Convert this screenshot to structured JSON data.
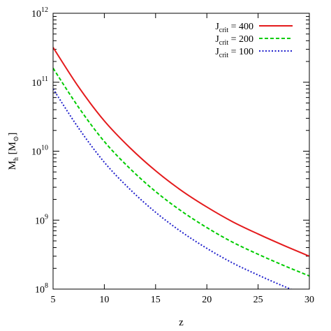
{
  "chart_data": {
    "type": "line",
    "title": "",
    "xlabel": "z",
    "ylabel_main": "M",
    "ylabel_sub": "h",
    "ylabel_unit": "[M",
    "ylabel_unit_close": "]",
    "ylabel_unit_symbol": "⊙",
    "xlim": [
      5,
      30
    ],
    "ylim": [
      100000000,
      1000000000000
    ],
    "y_scale": "log",
    "x_ticks": [
      5,
      10,
      15,
      20,
      25,
      30
    ],
    "x_tick_labels": [
      "5",
      "10",
      "15",
      "20",
      "25",
      "30"
    ],
    "y_ticks": [
      {
        "value": 100000000,
        "base": "10",
        "exp": "8"
      },
      {
        "value": 1000000000,
        "base": "10",
        "exp": "9"
      },
      {
        "value": 10000000000,
        "base": "10",
        "exp": "10"
      },
      {
        "value": 100000000000,
        "base": "10",
        "exp": "11"
      },
      {
        "value": 1000000000000,
        "base": "10",
        "exp": "12"
      }
    ],
    "grid": false,
    "legend_position": "top-right",
    "x": [
      5,
      7.5,
      10,
      12.5,
      15,
      17.5,
      20,
      22.5,
      25,
      27.5,
      30
    ],
    "series": [
      {
        "legend_main": "J",
        "legend_sub": "crit",
        "legend_value": " = 400",
        "color": "#e41a1c",
        "dash": "solid",
        "values": [
          320000000000.0,
          85000000000.0,
          27500000000.0,
          11200000000.0,
          5200000000.0,
          2700000000.0,
          1550000000.0,
          950000000.0,
          630000000.0,
          430000000.0,
          300000000.0
        ]
      },
      {
        "legend_main": "J",
        "legend_sub": "crit",
        "legend_value": " = 200",
        "color": "#00cc00",
        "dash": "dashed",
        "values": [
          160000000000.0,
          43000000000.0,
          13800000000.0,
          5600000000.0,
          2600000000.0,
          1360000000.0,
          780000000.0,
          480000000.0,
          320000000.0,
          220000000.0,
          155000000.0
        ]
      },
      {
        "legend_main": "J",
        "legend_sub": "crit",
        "legend_value": " = 100",
        "color": "#1f1fcc",
        "dash": "dotted",
        "values": [
          80000000000.0,
          21500000000.0,
          6900000000.0,
          2800000000.0,
          1300000000.0,
          680000000.0,
          390000000.0,
          240000000.0,
          160000000.0,
          110000000.0,
          78000000.0
        ]
      }
    ]
  }
}
